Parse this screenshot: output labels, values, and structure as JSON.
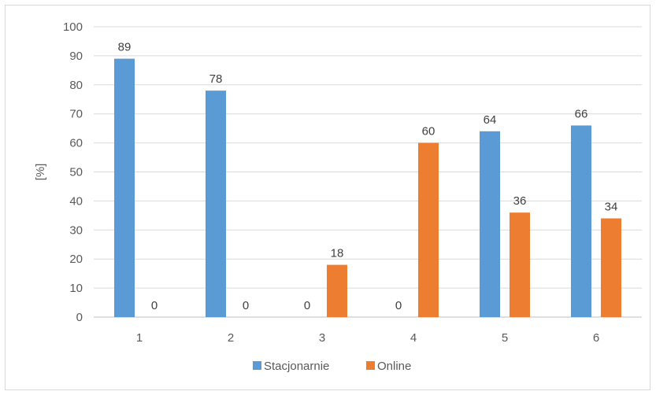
{
  "chart_data": {
    "type": "bar",
    "categories": [
      "1",
      "2",
      "3",
      "4",
      "5",
      "6"
    ],
    "series": [
      {
        "name": "Stacjonarnie",
        "values": [
          89,
          78,
          0,
          0,
          64,
          66
        ],
        "color": "#5b9bd5"
      },
      {
        "name": "Online",
        "values": [
          0,
          0,
          18,
          60,
          36,
          34
        ],
        "color": "#ed7d31"
      }
    ],
    "ylabel": "[%]",
    "xlabel": "",
    "title": "",
    "ylim": [
      0,
      100
    ],
    "yticks": [
      "0",
      "10",
      "20",
      "30",
      "40",
      "50",
      "60",
      "70",
      "80",
      "90",
      "100"
    ],
    "grid": true,
    "legend_position": "bottom"
  }
}
